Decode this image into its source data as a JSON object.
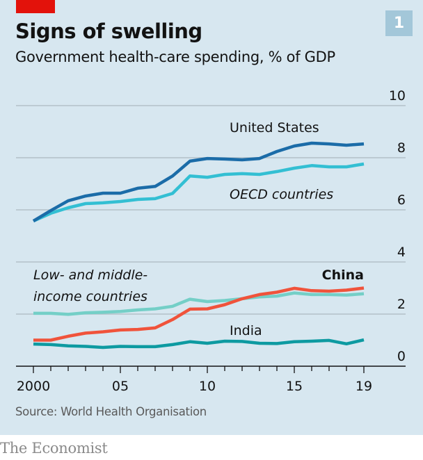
{
  "header": {
    "title": "Signs of swelling",
    "subtitle": "Government health-care spending, % of GDP",
    "chart_number": "1"
  },
  "footer": {
    "source": "Source: World Health Organisation",
    "brand": "The Economist"
  },
  "colors": {
    "background": "#d7e7f0",
    "brand_red": "#e3120b",
    "united_states": "#1b6ca8",
    "oecd": "#33bfd3",
    "lmic": "#74cfc7",
    "china": "#f0533b",
    "india": "#0d9aa1",
    "gridline": "#b4c1c8"
  },
  "chart_data": {
    "type": "line",
    "title": "Signs of swelling",
    "subtitle": "Government health-care spending, % of GDP",
    "xlabel": "",
    "ylabel": "% of GDP",
    "x": [
      2000,
      2001,
      2002,
      2003,
      2004,
      2005,
      2006,
      2007,
      2008,
      2009,
      2010,
      2011,
      2012,
      2013,
      2014,
      2015,
      2016,
      2017,
      2018,
      2019
    ],
    "x_tick_labels": [
      {
        "year": 2000,
        "label": "2000"
      },
      {
        "year": 2005,
        "label": "05"
      },
      {
        "year": 2010,
        "label": "10"
      },
      {
        "year": 2015,
        "label": "15"
      },
      {
        "year": 2019,
        "label": "19"
      }
    ],
    "ylim": [
      0,
      10
    ],
    "y_ticks": [
      0,
      2,
      4,
      6,
      8,
      10
    ],
    "y_axis_side": "right",
    "grid": true,
    "legend": "direct-labels",
    "series": [
      {
        "key": "united_states",
        "name": "United States",
        "style": "normal",
        "values": [
          5.57,
          5.97,
          6.35,
          6.53,
          6.64,
          6.64,
          6.83,
          6.9,
          7.3,
          7.87,
          7.97,
          7.95,
          7.92,
          7.97,
          8.24,
          8.45,
          8.56,
          8.53,
          8.48,
          8.53
        ]
      },
      {
        "key": "oecd",
        "name": "OECD countries",
        "style": "italic",
        "values": [
          5.57,
          5.87,
          6.08,
          6.24,
          6.27,
          6.32,
          6.4,
          6.43,
          6.63,
          7.3,
          7.25,
          7.36,
          7.39,
          7.36,
          7.47,
          7.6,
          7.7,
          7.65,
          7.65,
          7.76
        ]
      },
      {
        "key": "lmic",
        "name": "Low- and middle-income countries",
        "label_lines": [
          "Low- and middle-",
          "income countries"
        ],
        "style": "italic",
        "values": [
          2.03,
          2.03,
          1.99,
          2.05,
          2.07,
          2.1,
          2.16,
          2.2,
          2.3,
          2.57,
          2.48,
          2.52,
          2.59,
          2.66,
          2.69,
          2.81,
          2.75,
          2.75,
          2.73,
          2.78
        ]
      },
      {
        "key": "china",
        "name": "China",
        "style": "bold",
        "values": [
          1.0,
          1.0,
          1.15,
          1.27,
          1.32,
          1.39,
          1.41,
          1.47,
          1.79,
          2.19,
          2.2,
          2.36,
          2.59,
          2.75,
          2.84,
          2.99,
          2.9,
          2.88,
          2.92,
          3.0
        ]
      },
      {
        "key": "india",
        "name": "India",
        "style": "normal",
        "values": [
          0.85,
          0.83,
          0.78,
          0.76,
          0.72,
          0.76,
          0.75,
          0.75,
          0.83,
          0.94,
          0.88,
          0.96,
          0.95,
          0.88,
          0.87,
          0.94,
          0.96,
          0.99,
          0.86,
          1.01
        ]
      }
    ]
  }
}
